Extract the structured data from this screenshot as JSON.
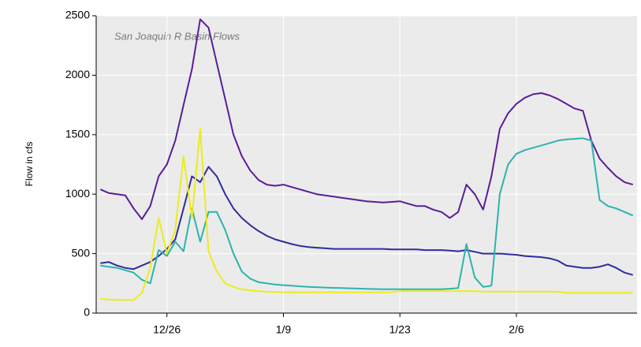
{
  "chart_data": {
    "type": "line",
    "title": "San Joaquin R Basin Flows",
    "y_label": "Flow in cfs",
    "categories": [
      null,
      null,
      null,
      null,
      null,
      null,
      null,
      null,
      "12/26",
      null,
      null,
      null,
      null,
      null,
      null,
      null,
      null,
      null,
      null,
      null,
      null,
      null,
      "1/9",
      null,
      null,
      null,
      null,
      null,
      null,
      null,
      null,
      null,
      null,
      null,
      null,
      null,
      "1/23",
      null,
      null,
      null,
      null,
      null,
      null,
      null,
      null,
      null,
      null,
      null,
      null,
      null,
      "2/6",
      null,
      null,
      null,
      null,
      null,
      null,
      null,
      null,
      null,
      null,
      null,
      null,
      null,
      null
    ],
    "series": [
      {
        "color": "#5a1d98",
        "values": [
          1040,
          1010,
          1000,
          990,
          880,
          790,
          900,
          1150,
          1250,
          1450,
          1750,
          2050,
          2470,
          2400,
          2100,
          1800,
          1500,
          1320,
          1200,
          1120,
          1080,
          1070,
          1080,
          1060,
          1040,
          1020,
          1000,
          990,
          980,
          970,
          960,
          950,
          940,
          935,
          930,
          935,
          940,
          920,
          900,
          900,
          870,
          850,
          800,
          850,
          1080,
          1000,
          870,
          1150,
          1550,
          1680,
          1760,
          1810,
          1840,
          1850,
          1830,
          1800,
          1760,
          1720,
          1700,
          1450,
          1300,
          1220,
          1150,
          1100,
          1080
        ]
      },
      {
        "color": "#2f2c9e",
        "values": [
          420,
          430,
          400,
          380,
          370,
          400,
          430,
          480,
          540,
          620,
          880,
          1150,
          1100,
          1230,
          1150,
          1000,
          880,
          800,
          740,
          690,
          650,
          620,
          600,
          580,
          565,
          555,
          550,
          545,
          540,
          540,
          540,
          540,
          540,
          540,
          540,
          535,
          535,
          535,
          535,
          530,
          530,
          530,
          525,
          520,
          530,
          515,
          500,
          500,
          500,
          495,
          490,
          480,
          475,
          470,
          460,
          440,
          400,
          390,
          380,
          380,
          390,
          410,
          380,
          340,
          320
        ]
      },
      {
        "color": "#2db3ad",
        "values": [
          400,
          390,
          380,
          360,
          340,
          280,
          250,
          530,
          480,
          600,
          520,
          880,
          600,
          850,
          850,
          700,
          500,
          350,
          290,
          260,
          250,
          240,
          235,
          230,
          225,
          220,
          218,
          215,
          212,
          210,
          208,
          206,
          204,
          202,
          200,
          200,
          200,
          200,
          200,
          200,
          200,
          200,
          205,
          210,
          580,
          300,
          220,
          230,
          1000,
          1250,
          1340,
          1370,
          1390,
          1410,
          1430,
          1450,
          1460,
          1465,
          1470,
          1450,
          950,
          900,
          880,
          850,
          820
        ]
      },
      {
        "color": "#ecec1c",
        "values": [
          120,
          115,
          110,
          110,
          110,
          170,
          380,
          800,
          500,
          700,
          1320,
          800,
          1550,
          520,
          350,
          250,
          220,
          200,
          190,
          185,
          180,
          178,
          176,
          175,
          175,
          175,
          175,
          175,
          175,
          175,
          175,
          175,
          175,
          175,
          175,
          175,
          185,
          185,
          185,
          185,
          185,
          185,
          185,
          185,
          185,
          185,
          180,
          180,
          180,
          180,
          180,
          180,
          180,
          180,
          180,
          180,
          170,
          170,
          170,
          170,
          170,
          170,
          170,
          170,
          170
        ]
      }
    ],
    "ylim": [
      0,
      2500
    ],
    "yticks": [
      0,
      500,
      1000,
      1500,
      2000,
      2500
    ],
    "grid": true
  }
}
